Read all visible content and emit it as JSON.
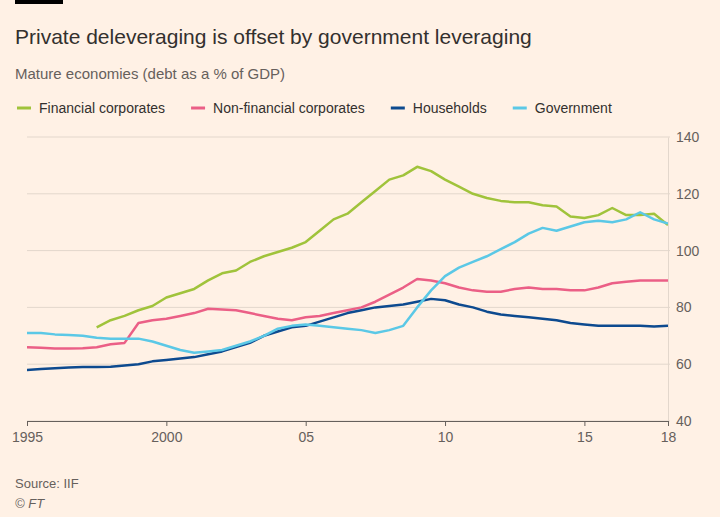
{
  "chart_data": {
    "type": "line",
    "title": "Private deleveraging is offset by government leveraging",
    "subtitle": "Mature economies (debt as a % of GDP)",
    "source": "Source: IIF",
    "credit": "© FT",
    "legend": "top",
    "grid": true,
    "xlim": [
      1995,
      2018
    ],
    "xticks": [
      1995,
      2000,
      {
        "value": 2005,
        "label": "05"
      },
      {
        "value": 2010,
        "label": "10"
      },
      {
        "value": 2015,
        "label": "15"
      },
      {
        "value": 2018,
        "label": "18"
      }
    ],
    "ylim": [
      40,
      140
    ],
    "yticks": [
      40,
      60,
      80,
      100,
      120,
      140
    ],
    "x": [
      1995.0,
      1995.5,
      1996.0,
      1996.5,
      1997.0,
      1997.5,
      1998.0,
      1998.5,
      1999.0,
      1999.5,
      2000.0,
      2000.5,
      2001.0,
      2001.5,
      2002.0,
      2002.5,
      2003.0,
      2003.5,
      2004.0,
      2004.5,
      2005.0,
      2005.5,
      2006.0,
      2006.5,
      2007.0,
      2007.5,
      2008.0,
      2008.5,
      2009.0,
      2009.5,
      2010.0,
      2010.5,
      2011.0,
      2011.5,
      2012.0,
      2012.5,
      2013.0,
      2013.5,
      2014.0,
      2014.5,
      2015.0,
      2015.5,
      2016.0,
      2016.5,
      2017.0,
      2017.5,
      2018.0
    ],
    "series": [
      {
        "name": "Financial corporates",
        "color": "#a0c33b",
        "values": [
          null,
          null,
          null,
          null,
          null,
          73,
          75.5,
          77,
          79,
          80.5,
          83.5,
          85,
          86.5,
          89.5,
          92,
          93,
          96,
          98,
          99.5,
          101,
          103,
          107,
          111,
          113,
          117,
          121,
          125,
          126.5,
          129.5,
          128,
          125,
          122.5,
          120,
          118.5,
          117.5,
          117,
          117,
          116,
          115.5,
          112,
          111.5,
          112.5,
          115,
          112.5,
          112.5,
          113,
          109
        ]
      },
      {
        "name": "Non-financial corporates",
        "color": "#eb5f86",
        "values": [
          66,
          65.8,
          65.5,
          65.5,
          65.6,
          66,
          67,
          67.5,
          74.5,
          75.5,
          76,
          77,
          78,
          79.5,
          79.3,
          79,
          78,
          77,
          76,
          75.5,
          76.5,
          77,
          78,
          79,
          80,
          82,
          84.5,
          87,
          90,
          89.5,
          88.5,
          87,
          86,
          85.5,
          85.5,
          86.5,
          87,
          86.5,
          86.5,
          86,
          86,
          87,
          88.5,
          89,
          89.5,
          89.5,
          89.5
        ]
      },
      {
        "name": "Households",
        "color": "#0d4a8f",
        "values": [
          58,
          58.3,
          58.6,
          58.8,
          59,
          59,
          59.1,
          59.5,
          60,
          61,
          61.5,
          62,
          62.5,
          63.5,
          64.5,
          66,
          67.5,
          70,
          71.5,
          73,
          73.5,
          75,
          76.5,
          78,
          79,
          80,
          80.5,
          81,
          82,
          83,
          82.5,
          81,
          80,
          78.5,
          77.5,
          77,
          76.5,
          76,
          75.5,
          74.5,
          74,
          73.5,
          73.5,
          73.5,
          73.5,
          73.3,
          73.5
        ]
      },
      {
        "name": "Government",
        "color": "#5bc8e6",
        "values": [
          71,
          71,
          70.5,
          70.3,
          70,
          69.3,
          69,
          69,
          69,
          68,
          66.5,
          65,
          64,
          64.5,
          65,
          66.5,
          68,
          70,
          72.5,
          73.5,
          74,
          73.5,
          73,
          72.5,
          72,
          71,
          72,
          73.5,
          80,
          86,
          91,
          94,
          96,
          98,
          100.5,
          103,
          106,
          108,
          107,
          108.5,
          110,
          110.5,
          110,
          111,
          113.5,
          111,
          109.5
        ]
      }
    ]
  }
}
